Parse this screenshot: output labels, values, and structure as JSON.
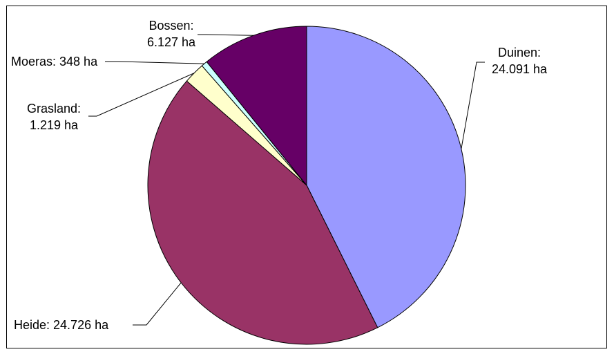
{
  "chart_data": {
    "type": "pie",
    "title": "",
    "unit": "ha",
    "slices": [
      {
        "name": "Duinen",
        "value": 24091,
        "color": "#9999ff",
        "label_lines": [
          "Duinen:",
          "24.091 ha"
        ]
      },
      {
        "name": "Heide",
        "value": 24726,
        "color": "#993366",
        "label_lines": [
          "Heide: 24.726 ha"
        ]
      },
      {
        "name": "Grasland",
        "value": 1219,
        "color": "#ffffcc",
        "label_lines": [
          "Grasland:",
          "1.219 ha"
        ]
      },
      {
        "name": "Moeras",
        "value": 348,
        "color": "#ccffff",
        "label_lines": [
          "Moeras: 348 ha"
        ]
      },
      {
        "name": "Bossen",
        "value": 6127,
        "color": "#660066",
        "label_lines": [
          "Bossen:",
          "6.127 ha"
        ]
      }
    ],
    "start_angle_deg": 0,
    "direction": "clockwise",
    "legend": "none"
  }
}
